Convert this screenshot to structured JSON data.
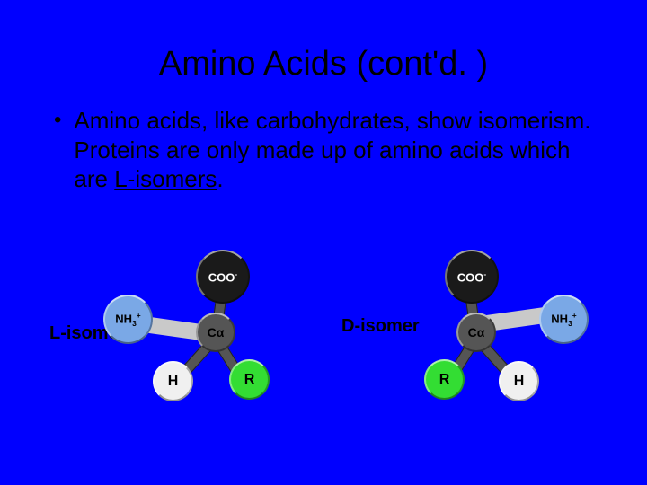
{
  "background_color": "#0000ff",
  "title": "Amino Acids  (cont'd. )",
  "bullet_point": {
    "text_before_underline": "Amino acids, like carbohydrates, show isomerism.  Proteins are only made up of amino acids which are ",
    "underlined": "L-isomers",
    "text_after_underline": "."
  },
  "labels": {
    "left": "L-isomer",
    "right": "D-isomer"
  },
  "molecule": {
    "type": "tetrahedral-3d",
    "center_label": "Cα",
    "groups": {
      "amino": {
        "label_html": "NH<sub>3</sub><sup>+</sup>",
        "color": "#7aa8e6",
        "text_color": "#000000",
        "diameter": 55
      },
      "carboxyl": {
        "label_html": "COO<sup>-</sup>",
        "color": "#1a1a1a",
        "text_color": "#ffffff",
        "diameter": 60
      },
      "r_group": {
        "label_html": "R",
        "color": "#33dd33",
        "text_color": "#000000",
        "diameter": 45
      },
      "hydrogen": {
        "label_html": "H",
        "color": "#f0f0f0",
        "text_color": "#000000",
        "diameter": 45
      },
      "center": {
        "color": "#555555",
        "text_color": "#000000",
        "diameter": 44
      }
    },
    "bond_color": "#555555",
    "bond_rear_color": "#c9c9c9"
  },
  "fonts": {
    "title_size_pt": 38,
    "body_size_pt": 26,
    "label_size_pt": 20,
    "atom_label_size_pt": 14
  }
}
